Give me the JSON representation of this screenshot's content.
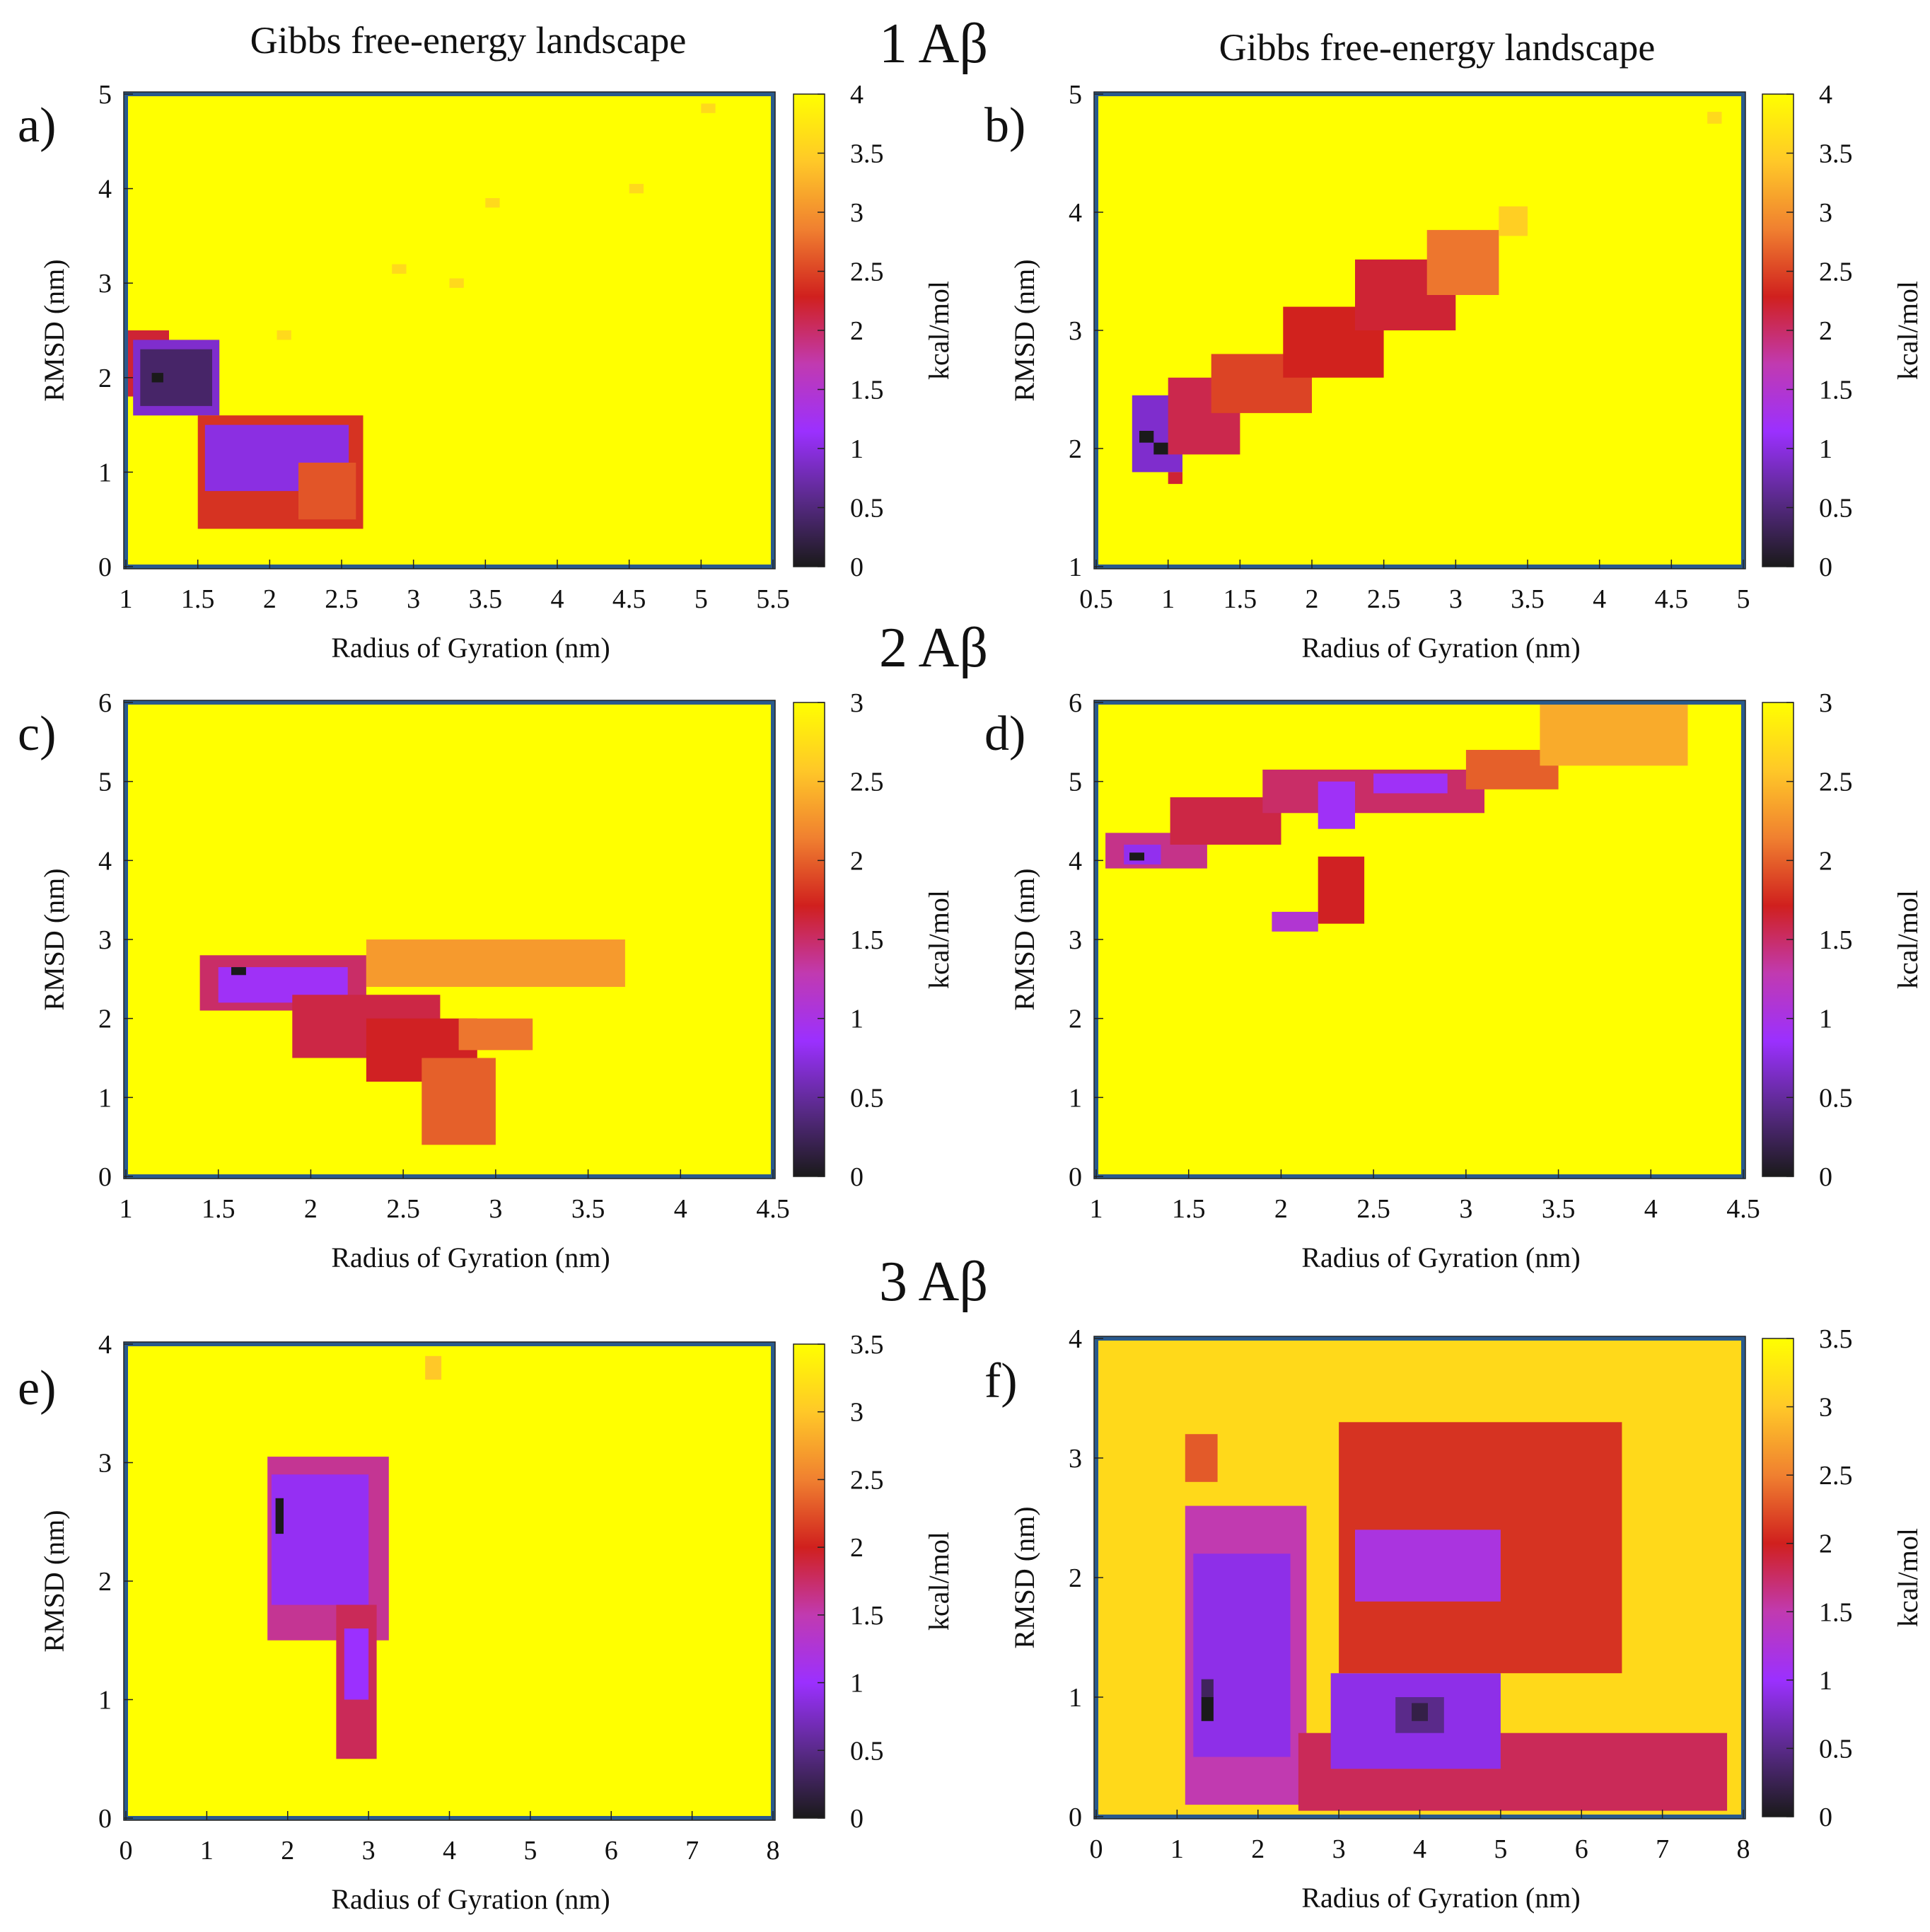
{
  "figure": {
    "row_titles": [
      "1 Aβ",
      "2 Aβ",
      "3 Aβ"
    ],
    "colors": {
      "cmap": [
        "#1a1a1a",
        "#5a2a8a",
        "#9b30ff",
        "#c13ab0",
        "#d0201e",
        "#f08030",
        "#ffc828",
        "#ffff00"
      ],
      "frame": "#2a5a8c",
      "background_f": "#ffd91a"
    }
  },
  "chart_data": [
    {
      "id": "a",
      "type": "heatmap",
      "panel_label": "a)",
      "title": "Gibbs free-energy landscape",
      "xlabel": "Radius of Gyration (nm)",
      "ylabel": "RMSD (nm)",
      "cbar_label": "kcal/mol",
      "xlim": [
        1,
        5.5
      ],
      "ylim": [
        0,
        5
      ],
      "zlim": [
        0,
        4
      ],
      "xticks": [
        1,
        1.5,
        2,
        2.5,
        3,
        3.5,
        4,
        4.5,
        5,
        5.5
      ],
      "yticks": [
        0,
        1,
        2,
        3,
        4,
        5
      ],
      "cticks": [
        0,
        0.5,
        1,
        1.5,
        2,
        2.5,
        3,
        3.5,
        4
      ],
      "background": 4,
      "features": [
        {
          "x": [
            1.0,
            1.3
          ],
          "y": [
            1.8,
            2.5
          ],
          "value": 2.2
        },
        {
          "x": [
            1.05,
            1.65
          ],
          "y": [
            1.6,
            2.4
          ],
          "value": 0.9
        },
        {
          "x": [
            1.1,
            1.6
          ],
          "y": [
            1.7,
            2.3
          ],
          "value": 0.4
        },
        {
          "x": [
            1.18,
            1.26
          ],
          "y": [
            1.95,
            2.05
          ],
          "value": 0.0
        },
        {
          "x": [
            1.5,
            2.65
          ],
          "y": [
            0.4,
            1.6
          ],
          "value": 2.4
        },
        {
          "x": [
            1.55,
            2.55
          ],
          "y": [
            0.8,
            1.5
          ],
          "value": 1.0
        },
        {
          "x": [
            2.2,
            2.6
          ],
          "y": [
            0.5,
            1.1
          ],
          "value": 2.6
        },
        {
          "x": [
            2.05,
            2.15
          ],
          "y": [
            2.4,
            2.5
          ],
          "value": 3.6
        },
        {
          "x": [
            2.85,
            2.95
          ],
          "y": [
            3.1,
            3.2
          ],
          "value": 3.6
        },
        {
          "x": [
            3.25,
            3.35
          ],
          "y": [
            2.95,
            3.05
          ],
          "value": 3.6
        },
        {
          "x": [
            3.5,
            3.6
          ],
          "y": [
            3.8,
            3.9
          ],
          "value": 3.6
        },
        {
          "x": [
            4.5,
            4.6
          ],
          "y": [
            3.95,
            4.05
          ],
          "value": 3.6
        },
        {
          "x": [
            5.0,
            5.1
          ],
          "y": [
            4.8,
            4.9
          ],
          "value": 3.6
        }
      ]
    },
    {
      "id": "b",
      "type": "heatmap",
      "panel_label": "b)",
      "title": "Gibbs free-energy landscape",
      "xlabel": "Radius of Gyration (nm)",
      "ylabel": "RMSD (nm)",
      "cbar_label": "kcal/mol",
      "xlim": [
        0.5,
        5
      ],
      "ylim": [
        1,
        5
      ],
      "zlim": [
        0,
        4
      ],
      "xticks": [
        0.5,
        1,
        1.5,
        2,
        2.5,
        3,
        3.5,
        4,
        4.5,
        5
      ],
      "yticks": [
        1,
        2,
        3,
        4,
        5
      ],
      "cticks": [
        0,
        0.5,
        1,
        1.5,
        2,
        2.5,
        3,
        3.5,
        4
      ],
      "background": 4,
      "features": [
        {
          "x": [
            0.75,
            1.1
          ],
          "y": [
            1.8,
            2.45
          ],
          "value": 0.9
        },
        {
          "x": [
            0.8,
            0.9
          ],
          "y": [
            2.05,
            2.15
          ],
          "value": 0.0
        },
        {
          "x": [
            0.9,
            1.0
          ],
          "y": [
            1.95,
            2.05
          ],
          "value": 0.0
        },
        {
          "x": [
            1.0,
            1.1
          ],
          "y": [
            1.7,
            1.8
          ],
          "value": 2.2
        },
        {
          "x": [
            1.0,
            1.5
          ],
          "y": [
            1.95,
            2.6
          ],
          "value": 2.1
        },
        {
          "x": [
            1.3,
            2.0
          ],
          "y": [
            2.3,
            2.8
          ],
          "value": 2.5
        },
        {
          "x": [
            1.8,
            2.5
          ],
          "y": [
            2.6,
            3.2
          ],
          "value": 2.3
        },
        {
          "x": [
            2.3,
            3.0
          ],
          "y": [
            3.0,
            3.6
          ],
          "value": 2.2
        },
        {
          "x": [
            2.8,
            3.3
          ],
          "y": [
            3.3,
            3.85
          ],
          "value": 2.8
        },
        {
          "x": [
            3.3,
            3.5
          ],
          "y": [
            3.8,
            4.05
          ],
          "value": 3.5
        },
        {
          "x": [
            4.75,
            4.85
          ],
          "y": [
            4.75,
            4.85
          ],
          "value": 3.6
        }
      ]
    },
    {
      "id": "c",
      "type": "heatmap",
      "panel_label": "c)",
      "xlabel": "Radius of Gyration (nm)",
      "ylabel": "RMSD (nm)",
      "cbar_label": "kcal/mol",
      "xlim": [
        1,
        4.5
      ],
      "ylim": [
        0,
        6
      ],
      "zlim": [
        0,
        3
      ],
      "xticks": [
        1,
        1.5,
        2,
        2.5,
        3,
        3.5,
        4,
        4.5
      ],
      "yticks": [
        0,
        1,
        2,
        3,
        4,
        5,
        6
      ],
      "cticks": [
        0,
        0.5,
        1,
        1.5,
        2,
        2.5,
        3
      ],
      "background": 3,
      "features": [
        {
          "x": [
            1.4,
            2.3
          ],
          "y": [
            2.1,
            2.8
          ],
          "value": 1.5
        },
        {
          "x": [
            1.5,
            2.2
          ],
          "y": [
            2.2,
            2.65
          ],
          "value": 0.9
        },
        {
          "x": [
            1.57,
            1.65
          ],
          "y": [
            2.55,
            2.65
          ],
          "value": 0.0
        },
        {
          "x": [
            1.9,
            2.7
          ],
          "y": [
            1.5,
            2.3
          ],
          "value": 1.6
        },
        {
          "x": [
            2.3,
            2.9
          ],
          "y": [
            1.2,
            2.0
          ],
          "value": 1.7
        },
        {
          "x": [
            2.6,
            3.0
          ],
          "y": [
            0.4,
            1.5
          ],
          "value": 2.0
        },
        {
          "x": [
            2.3,
            3.7
          ],
          "y": [
            2.4,
            3.0
          ],
          "value": 2.3
        },
        {
          "x": [
            2.8,
            3.2
          ],
          "y": [
            1.6,
            2.0
          ],
          "value": 2.1
        }
      ]
    },
    {
      "id": "d",
      "type": "heatmap",
      "panel_label": "d)",
      "xlabel": "Radius of Gyration (nm)",
      "ylabel": "RMSD (nm)",
      "cbar_label": "kcal/mol",
      "xlim": [
        1,
        4.5
      ],
      "ylim": [
        0,
        6
      ],
      "zlim": [
        0,
        3
      ],
      "xticks": [
        1,
        1.5,
        2,
        2.5,
        3,
        3.5,
        4,
        4.5
      ],
      "yticks": [
        0,
        1,
        2,
        3,
        4,
        5,
        6
      ],
      "cticks": [
        0,
        0.5,
        1,
        1.5,
        2,
        2.5,
        3
      ],
      "background": 3,
      "features": [
        {
          "x": [
            1.05,
            1.6
          ],
          "y": [
            3.9,
            4.35
          ],
          "value": 1.4
        },
        {
          "x": [
            1.15,
            1.35
          ],
          "y": [
            3.95,
            4.2
          ],
          "value": 0.8
        },
        {
          "x": [
            1.18,
            1.26
          ],
          "y": [
            4.0,
            4.1
          ],
          "value": 0.0
        },
        {
          "x": [
            1.4,
            2.0
          ],
          "y": [
            4.2,
            4.8
          ],
          "value": 1.6
        },
        {
          "x": [
            1.9,
            3.1
          ],
          "y": [
            4.6,
            5.15
          ],
          "value": 1.5
        },
        {
          "x": [
            2.2,
            2.4
          ],
          "y": [
            4.4,
            5.0
          ],
          "value": 0.9
        },
        {
          "x": [
            2.5,
            2.9
          ],
          "y": [
            4.85,
            5.1
          ],
          "value": 0.9
        },
        {
          "x": [
            3.0,
            3.5
          ],
          "y": [
            4.9,
            5.4
          ],
          "value": 2.0
        },
        {
          "x": [
            3.4,
            4.2
          ],
          "y": [
            5.2,
            6.0
          ],
          "value": 2.4
        },
        {
          "x": [
            2.2,
            2.45
          ],
          "y": [
            3.2,
            4.05
          ],
          "value": 1.7
        },
        {
          "x": [
            1.95,
            2.2
          ],
          "y": [
            3.1,
            3.35
          ],
          "value": 1.1
        }
      ]
    },
    {
      "id": "e",
      "type": "heatmap",
      "panel_label": "e)",
      "xlabel": "Radius of Gyration (nm)",
      "ylabel": "RMSD (nm)",
      "cbar_label": "kcal/mol",
      "xlim": [
        0,
        8
      ],
      "ylim": [
        0,
        4
      ],
      "zlim": [
        0,
        3.5
      ],
      "xticks": [
        0,
        1,
        2,
        3,
        4,
        5,
        6,
        7,
        8
      ],
      "yticks": [
        0,
        1,
        2,
        3,
        4
      ],
      "cticks": [
        0,
        0.5,
        1,
        1.5,
        2,
        2.5,
        3,
        3.5
      ],
      "background": 3.5,
      "features": [
        {
          "x": [
            1.75,
            3.25
          ],
          "y": [
            1.5,
            3.05
          ],
          "value": 1.6
        },
        {
          "x": [
            1.8,
            3.0
          ],
          "y": [
            1.8,
            2.9
          ],
          "value": 0.95
        },
        {
          "x": [
            1.85,
            1.95
          ],
          "y": [
            2.4,
            2.7
          ],
          "value": 0.0
        },
        {
          "x": [
            2.6,
            3.1
          ],
          "y": [
            0.5,
            1.8
          ],
          "value": 1.8
        },
        {
          "x": [
            2.7,
            3.0
          ],
          "y": [
            1.0,
            1.6
          ],
          "value": 1.0
        },
        {
          "x": [
            3.7,
            3.9
          ],
          "y": [
            3.7,
            3.9
          ],
          "value": 3.0
        }
      ]
    },
    {
      "id": "f",
      "type": "heatmap",
      "panel_label": "f)",
      "xlabel": "Radius of Gyration (nm)",
      "ylabel": "RMSD (nm)",
      "cbar_label": "kcal/mol",
      "xlim": [
        0,
        8
      ],
      "ylim": [
        0,
        4
      ],
      "zlim": [
        0,
        3.5
      ],
      "xticks": [
        0,
        1,
        2,
        3,
        4,
        5,
        6,
        7,
        8
      ],
      "yticks": [
        0,
        1,
        2,
        3,
        4
      ],
      "cticks": [
        0,
        0.5,
        1,
        1.5,
        2,
        2.5,
        3,
        3.5
      ],
      "background": 3.2,
      "features": [
        {
          "x": [
            1.1,
            2.6
          ],
          "y": [
            0.1,
            2.6
          ],
          "value": 1.5
        },
        {
          "x": [
            1.2,
            2.4
          ],
          "y": [
            0.5,
            2.2
          ],
          "value": 0.9
        },
        {
          "x": [
            1.3,
            1.45
          ],
          "y": [
            0.8,
            1.0
          ],
          "value": 0.0
        },
        {
          "x": [
            1.3,
            1.45
          ],
          "y": [
            1.0,
            1.15
          ],
          "value": 0.3
        },
        {
          "x": [
            2.5,
            7.8
          ],
          "y": [
            0.05,
            0.7
          ],
          "value": 1.8
        },
        {
          "x": [
            2.9,
            5.0
          ],
          "y": [
            0.4,
            1.2
          ],
          "value": 0.9
        },
        {
          "x": [
            3.7,
            4.3
          ],
          "y": [
            0.7,
            1.0
          ],
          "value": 0.5
        },
        {
          "x": [
            3.9,
            4.1
          ],
          "y": [
            0.8,
            0.95
          ],
          "value": 0.2
        },
        {
          "x": [
            3.0,
            6.5
          ],
          "y": [
            1.2,
            3.3
          ],
          "value": 2.1
        },
        {
          "x": [
            3.2,
            5.0
          ],
          "y": [
            1.8,
            2.4
          ],
          "value": 1.2
        },
        {
          "x": [
            1.1,
            1.5
          ],
          "y": [
            2.8,
            3.2
          ],
          "value": 2.3
        }
      ]
    }
  ]
}
